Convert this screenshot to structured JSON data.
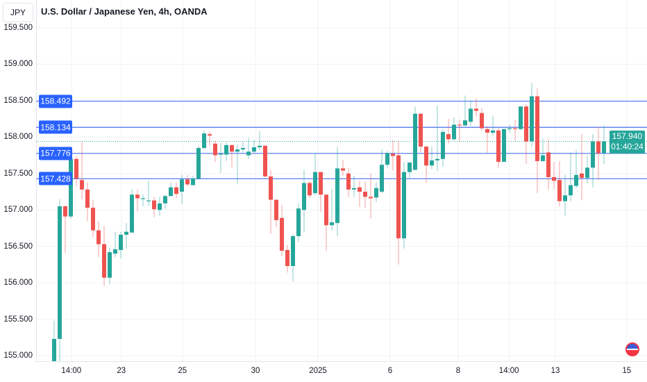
{
  "header": {
    "currency": "JPY",
    "title": "U.S. Dollar / Japanese Yen, 4h, OANDA"
  },
  "colors": {
    "up": "#26a69a",
    "down": "#ef5350",
    "level": "#5b7cf0",
    "label": "#2962ff"
  },
  "current": {
    "price": "157.940",
    "countdown": "01:40:24"
  },
  "chart_data": {
    "type": "candlestick",
    "ylim": [
      154.88,
      159.6
    ],
    "price_ticks": [
      "159.500",
      "159.000",
      "158.500",
      "158.000",
      "157.500",
      "157.000",
      "156.500",
      "156.000",
      "155.500",
      "155.000"
    ],
    "levels": [
      "158.492",
      "158.134",
      "157.776",
      "157.428"
    ],
    "last_price": 157.94,
    "time_ticks": [
      {
        "label": "14:00",
        "index": 3.1
      },
      {
        "label": "23",
        "index": 12.1
      },
      {
        "label": "25",
        "index": 23.1
      },
      {
        "label": "30",
        "index": 36.25
      },
      {
        "label": "2025",
        "index": 47.5
      },
      {
        "label": "6",
        "index": 60.5
      },
      {
        "label": "8",
        "index": 72.75
      },
      {
        "label": "14:00",
        "index": 81.9
      },
      {
        "label": "13",
        "index": 90.25
      },
      {
        "label": "15",
        "index": 103.1
      }
    ],
    "ohlc": [
      [
        154.85,
        155.48,
        154.8,
        155.23
      ],
      [
        155.23,
        157.15,
        154.92,
        157.05
      ],
      [
        157.05,
        157.06,
        156.41,
        156.91
      ],
      [
        156.91,
        157.81,
        156.88,
        157.7
      ],
      [
        157.7,
        157.74,
        157.32,
        157.43
      ],
      [
        157.41,
        157.94,
        157.15,
        157.28
      ],
      [
        157.28,
        157.38,
        156.85,
        157.03
      ],
      [
        157.03,
        157.14,
        156.63,
        156.72
      ],
      [
        156.72,
        156.85,
        156.35,
        156.53
      ],
      [
        156.53,
        156.78,
        155.96,
        156.07
      ],
      [
        156.07,
        156.48,
        155.98,
        156.42
      ],
      [
        156.4,
        156.7,
        156.35,
        156.46
      ],
      [
        156.45,
        156.7,
        156.34,
        156.66
      ],
      [
        156.66,
        156.82,
        156.47,
        156.7
      ],
      [
        156.69,
        157.28,
        156.68,
        157.21
      ],
      [
        157.21,
        157.28,
        156.98,
        157.16
      ],
      [
        157.15,
        157.21,
        157.05,
        157.16
      ],
      [
        157.12,
        157.4,
        157.06,
        157.13
      ],
      [
        157.13,
        157.18,
        156.9,
        157.01
      ],
      [
        157.0,
        157.18,
        156.92,
        157.09
      ],
      [
        157.09,
        157.21,
        157.02,
        157.19
      ],
      [
        157.19,
        157.38,
        157.19,
        157.31
      ],
      [
        157.31,
        157.38,
        157.16,
        157.22
      ],
      [
        157.25,
        157.48,
        157.08,
        157.42
      ],
      [
        157.42,
        157.48,
        157.33,
        157.35
      ],
      [
        157.34,
        157.47,
        157.34,
        157.43
      ],
      [
        157.43,
        157.88,
        157.41,
        157.85
      ],
      [
        157.85,
        158.09,
        157.84,
        158.05
      ],
      [
        158.04,
        158.08,
        157.88,
        158.02
      ],
      [
        157.91,
        157.95,
        157.66,
        157.75
      ],
      [
        157.76,
        157.92,
        157.51,
        157.77
      ],
      [
        157.76,
        157.92,
        157.67,
        157.89
      ],
      [
        157.89,
        157.9,
        157.58,
        157.8
      ],
      [
        157.8,
        157.9,
        157.35,
        157.83
      ],
      [
        157.83,
        157.94,
        157.79,
        157.85
      ],
      [
        157.75,
        157.99,
        157.7,
        157.8
      ],
      [
        157.8,
        157.96,
        157.79,
        157.86
      ],
      [
        157.86,
        158.08,
        157.82,
        157.88
      ],
      [
        157.88,
        157.89,
        157.45,
        157.46
      ],
      [
        157.46,
        157.55,
        156.67,
        157.14
      ],
      [
        157.14,
        157.14,
        156.76,
        156.86
      ],
      [
        156.89,
        157.07,
        156.37,
        156.44
      ],
      [
        156.45,
        156.52,
        156.14,
        156.23
      ],
      [
        156.23,
        156.67,
        156.02,
        156.64
      ],
      [
        156.64,
        157.09,
        156.56,
        157.02
      ],
      [
        157.0,
        157.55,
        156.69,
        157.37
      ],
      [
        157.37,
        157.4,
        157.16,
        157.2
      ],
      [
        157.23,
        157.78,
        157.2,
        157.52
      ],
      [
        157.52,
        157.52,
        156.97,
        157.21
      ],
      [
        157.21,
        157.21,
        156.44,
        156.79
      ],
      [
        156.79,
        157.29,
        156.72,
        156.83
      ],
      [
        156.82,
        157.86,
        156.64,
        157.57
      ],
      [
        157.57,
        157.68,
        157.47,
        157.54
      ],
      [
        157.5,
        157.57,
        157.18,
        157.28
      ],
      [
        157.28,
        157.47,
        157.18,
        157.3
      ],
      [
        157.31,
        157.4,
        157.04,
        157.25
      ],
      [
        157.25,
        157.39,
        157.03,
        157.18
      ],
      [
        157.18,
        157.5,
        156.88,
        157.16
      ],
      [
        157.17,
        157.38,
        157.11,
        157.3
      ],
      [
        157.25,
        157.83,
        157.23,
        157.62
      ],
      [
        157.62,
        157.81,
        157.57,
        157.78
      ],
      [
        157.77,
        157.96,
        157.54,
        157.74
      ],
      [
        157.75,
        157.95,
        156.25,
        156.61
      ],
      [
        156.61,
        157.66,
        156.47,
        157.52
      ],
      [
        157.52,
        157.66,
        157.44,
        157.65
      ],
      [
        157.55,
        158.42,
        157.54,
        158.32
      ],
      [
        158.32,
        158.33,
        157.79,
        157.87
      ],
      [
        157.87,
        157.87,
        157.37,
        157.61
      ],
      [
        157.61,
        157.87,
        157.56,
        157.68
      ],
      [
        157.68,
        158.43,
        157.53,
        157.7
      ],
      [
        157.7,
        158.11,
        157.59,
        158.07
      ],
      [
        158.04,
        158.25,
        157.91,
        157.97
      ],
      [
        157.97,
        158.27,
        157.95,
        158.17
      ],
      [
        158.17,
        158.24,
        157.94,
        158.16
      ],
      [
        158.16,
        158.57,
        158.15,
        158.23
      ],
      [
        158.21,
        158.5,
        158.15,
        158.39
      ],
      [
        158.39,
        158.53,
        158.28,
        158.36
      ],
      [
        158.33,
        158.4,
        158.09,
        158.12
      ],
      [
        158.11,
        158.15,
        157.78,
        158.06
      ],
      [
        158.06,
        158.29,
        158.02,
        158.09
      ],
      [
        158.09,
        158.12,
        157.58,
        157.66
      ],
      [
        157.66,
        158.12,
        157.66,
        158.11
      ],
      [
        158.11,
        158.17,
        158.06,
        158.12
      ],
      [
        158.12,
        158.24,
        157.95,
        158.11
      ],
      [
        158.11,
        158.42,
        158.09,
        158.42
      ],
      [
        158.42,
        158.45,
        157.63,
        157.94
      ],
      [
        157.94,
        158.74,
        157.87,
        158.56
      ],
      [
        158.56,
        158.67,
        157.23,
        157.67
      ],
      [
        157.67,
        157.98,
        157.66,
        157.75
      ],
      [
        157.79,
        157.97,
        157.28,
        157.45
      ],
      [
        157.45,
        157.66,
        157.29,
        157.4
      ],
      [
        157.41,
        157.67,
        157.05,
        157.12
      ],
      [
        157.12,
        157.48,
        156.92,
        157.2
      ],
      [
        157.2,
        157.79,
        157.12,
        157.34
      ],
      [
        157.33,
        157.82,
        157.3,
        157.48
      ],
      [
        157.5,
        158.04,
        157.13,
        157.44
      ],
      [
        157.44,
        157.75,
        157.36,
        157.58
      ],
      [
        157.58,
        158.04,
        157.31,
        157.94
      ],
      [
        157.94,
        158.14,
        157.41,
        157.78
      ],
      [
        157.78,
        158.16,
        157.63,
        157.94
      ]
    ]
  }
}
